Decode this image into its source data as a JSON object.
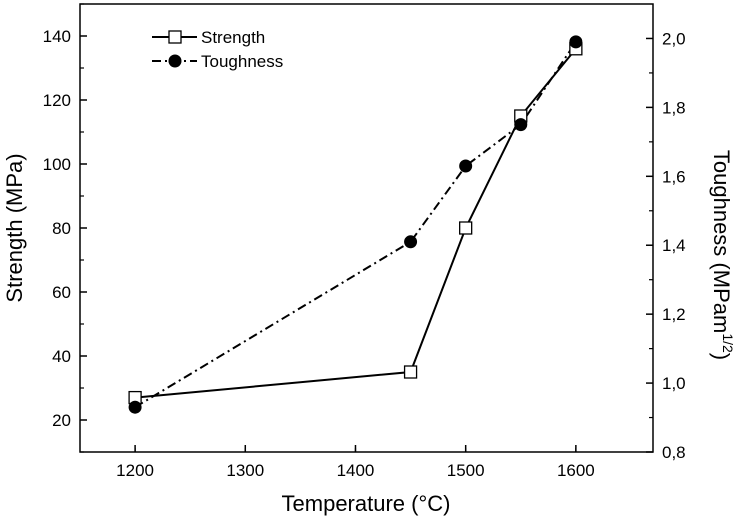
{
  "chart_data": {
    "type": "line",
    "xlabel": "Temperature (°C)",
    "ylabel_left": "Strength (MPa)",
    "ylabel_right_main": "Toughness (MPam",
    "ylabel_right_sup": "1/2",
    "ylabel_right_close": ")",
    "xlim": [
      1150,
      1670
    ],
    "ylim_left": [
      10,
      150
    ],
    "ylim_right": [
      0.8,
      2.1
    ],
    "x_ticks": [
      "1200",
      "1300",
      "1400",
      "1500",
      "1600"
    ],
    "y_left_ticks": [
      "20",
      "40",
      "60",
      "80",
      "100",
      "120",
      "140"
    ],
    "y_right_ticks": [
      "0,8",
      "1,0",
      "1,2",
      "1,4",
      "1,6",
      "1,8",
      "2,0"
    ],
    "legend_position": "top-left",
    "grid": false,
    "series": [
      {
        "name": "Strength",
        "axis": "left",
        "marker": "open-square",
        "line_style": "solid",
        "color": "#000000",
        "x": [
          1200,
          1450,
          1500,
          1550,
          1600
        ],
        "y": [
          27,
          35,
          80,
          115,
          136
        ]
      },
      {
        "name": "Toughness",
        "axis": "right",
        "marker": "filled-circle",
        "line_style": "dash-dot",
        "color": "#000000",
        "x": [
          1200,
          1450,
          1500,
          1550,
          1600
        ],
        "y": [
          0.93,
          1.41,
          1.63,
          1.75,
          1.99
        ]
      }
    ]
  }
}
